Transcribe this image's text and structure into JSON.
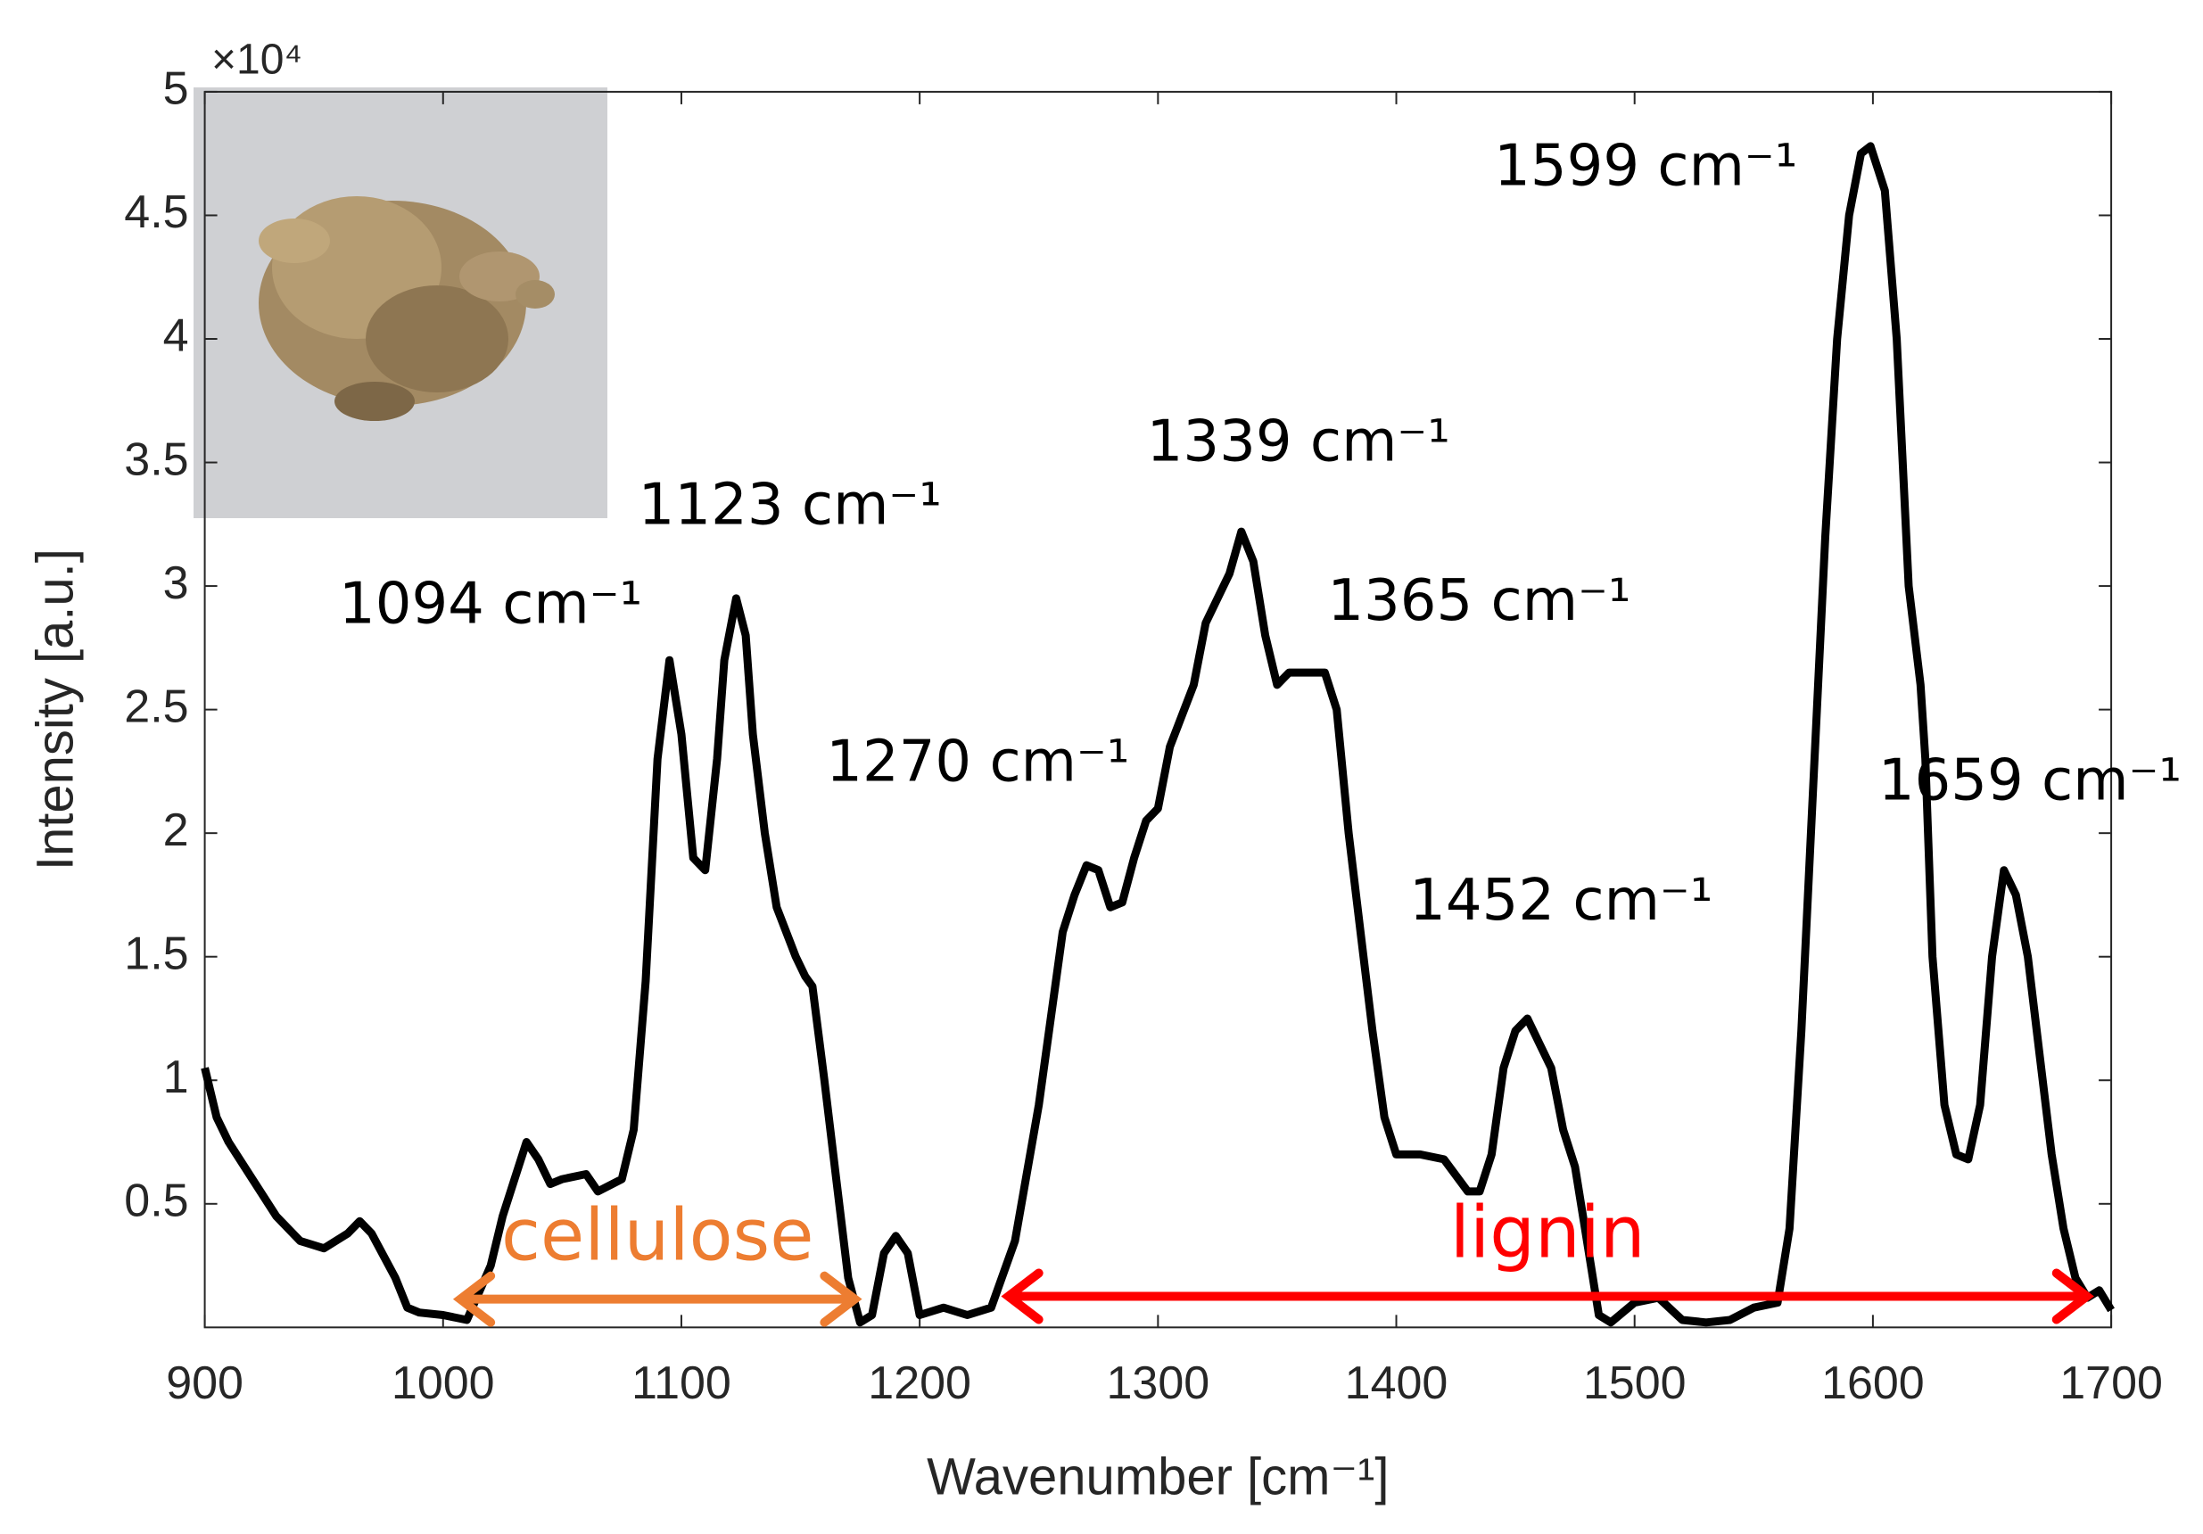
{
  "chart_data": {
    "type": "line",
    "x_label": "Wavenumber [cm⁻¹]",
    "y_label": "Intensity [a.u.]",
    "y_exponent": "×10⁴",
    "color": "#000000",
    "x": [
      900,
      905,
      910,
      920,
      930,
      940,
      950,
      960,
      965,
      970,
      980,
      985,
      990,
      1000,
      1010,
      1020,
      1025,
      1030,
      1035,
      1040,
      1045,
      1050,
      1060,
      1065,
      1075,
      1080,
      1085,
      1090,
      1095,
      1100,
      1105,
      1110,
      1115,
      1118,
      1123,
      1127,
      1130,
      1135,
      1140,
      1148,
      1152,
      1155,
      1160,
      1165,
      1170,
      1175,
      1180,
      1185,
      1190,
      1195,
      1200,
      1210,
      1220,
      1230,
      1240,
      1250,
      1260,
      1265,
      1270,
      1275,
      1280,
      1285,
      1290,
      1295,
      1300,
      1305,
      1315,
      1320,
      1330,
      1335,
      1340,
      1345,
      1350,
      1355,
      1365,
      1370,
      1375,
      1380,
      1385,
      1390,
      1395,
      1400,
      1410,
      1420,
      1430,
      1435,
      1440,
      1445,
      1450,
      1455,
      1460,
      1465,
      1470,
      1475,
      1480,
      1485,
      1490,
      1500,
      1510,
      1520,
      1530,
      1540,
      1550,
      1560,
      1565,
      1570,
      1575,
      1580,
      1585,
      1590,
      1595,
      1599,
      1605,
      1610,
      1615,
      1620,
      1622,
      1625,
      1630,
      1635,
      1640,
      1645,
      1650,
      1655,
      1660,
      1665,
      1670,
      1675,
      1680,
      1685,
      1690,
      1695,
      1700
    ],
    "values": [
      10500,
      8500,
      7500,
      6000,
      4500,
      3500,
      3200,
      3800,
      4300,
      3800,
      2000,
      800,
      600,
      500,
      300,
      2500,
      4500,
      6000,
      7500,
      6800,
      5800,
      6000,
      6200,
      5500,
      6000,
      8000,
      14000,
      23000,
      27000,
      24000,
      19000,
      18500,
      23000,
      27000,
      29500,
      28000,
      24000,
      20000,
      17000,
      15000,
      14200,
      13800,
      10000,
      6000,
      2000,
      200,
      500,
      3000,
      3700,
      3000,
      500,
      800,
      500,
      800,
      3500,
      9000,
      16000,
      17500,
      18700,
      18500,
      17000,
      17200,
      19000,
      20500,
      21000,
      23500,
      26000,
      28500,
      30500,
      32200,
      31000,
      28000,
      26000,
      26500,
      26500,
      26500,
      25000,
      20000,
      16000,
      12000,
      8500,
      7000,
      7000,
      6800,
      5500,
      5500,
      7000,
      10500,
      12000,
      12500,
      11500,
      10500,
      8000,
      6500,
      3500,
      500,
      200,
      1000,
      1200,
      300,
      200,
      300,
      800,
      1000,
      4000,
      12000,
      22000,
      32000,
      40000,
      45000,
      47500,
      47800,
      46000,
      40000,
      30000,
      26000,
      23000,
      15000,
      9000,
      7000,
      6800,
      9000,
      15000,
      18500,
      17500,
      15000,
      11000,
      7000,
      4000,
      2000,
      1200,
      1500,
      700
    ],
    "xlim": [
      900,
      1700
    ],
    "ylim": [
      0,
      50000
    ],
    "xticks": [
      900,
      1000,
      1100,
      1200,
      1300,
      1400,
      1500,
      1600,
      1700
    ],
    "yticks": [
      {
        "value": 5000,
        "label": "0.5"
      },
      {
        "value": 10000,
        "label": "1"
      },
      {
        "value": 15000,
        "label": "1.5"
      },
      {
        "value": 20000,
        "label": "2"
      },
      {
        "value": 25000,
        "label": "2.5"
      },
      {
        "value": 30000,
        "label": "3"
      },
      {
        "value": 35000,
        "label": "3.5"
      },
      {
        "value": 40000,
        "label": "4"
      },
      {
        "value": 45000,
        "label": "4.5"
      },
      {
        "value": 50000,
        "label": "5"
      }
    ],
    "annotations": [
      "1094 cm⁻¹",
      "1123 cm⁻¹",
      "1339 cm⁻¹",
      "1365 cm⁻¹",
      "1270 cm⁻¹",
      "1452 cm⁻¹",
      "1599 cm⁻¹",
      "1659 cm⁻¹"
    ],
    "regions": [
      {
        "label": "cellulose",
        "x": [
          1005,
          1175
        ],
        "color": "#ed7d31"
      },
      {
        "label": "lignin",
        "x": [
          1235,
          1692
        ],
        "color": "#ff0000"
      }
    ]
  }
}
